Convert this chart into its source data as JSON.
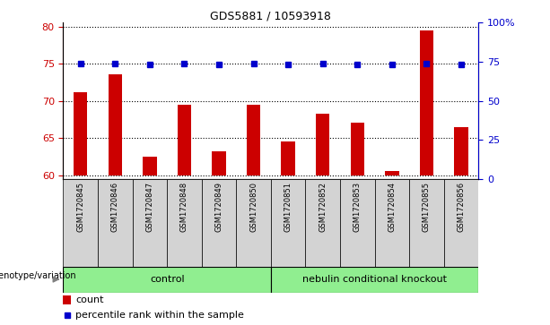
{
  "title": "GDS5881 / 10593918",
  "samples": [
    "GSM1720845",
    "GSM1720846",
    "GSM1720847",
    "GSM1720848",
    "GSM1720849",
    "GSM1720850",
    "GSM1720851",
    "GSM1720852",
    "GSM1720853",
    "GSM1720854",
    "GSM1720855",
    "GSM1720856"
  ],
  "counts": [
    71.1,
    73.5,
    62.5,
    69.5,
    63.2,
    69.5,
    64.5,
    68.3,
    67.0,
    60.5,
    79.5,
    66.5
  ],
  "percentiles": [
    74,
    74,
    73,
    74,
    73,
    74,
    73.5,
    74,
    73.5,
    73,
    74,
    73.5
  ],
  "ylim_left": [
    59.5,
    80.5
  ],
  "ylim_right": [
    0,
    100
  ],
  "yticks_left": [
    60,
    65,
    70,
    75,
    80
  ],
  "yticks_right": [
    0,
    25,
    50,
    75,
    100
  ],
  "yticklabels_right": [
    "0",
    "25",
    "50",
    "75",
    "100%"
  ],
  "bar_color": "#cc0000",
  "dot_color": "#0000cc",
  "control_label": "control",
  "knockout_label": "nebulin conditional knockout",
  "genotype_label": "genotype/variation",
  "control_count": 6,
  "legend_count_label": "count",
  "legend_percentile_label": "percentile rank within the sample",
  "control_color": "#90ee90",
  "knockout_color": "#90ee90",
  "xticklabel_bg": "#d3d3d3",
  "bar_width": 0.4
}
